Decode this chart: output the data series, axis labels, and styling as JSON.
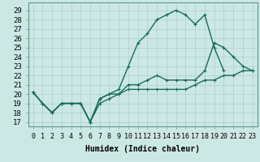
{
  "xlabel": "Humidex (Indice chaleur)",
  "bg_color": "#cce8e5",
  "line_color": "#1a6b5a",
  "grid_color": "#aacfcc",
  "xlim": [
    -0.5,
    23.5
  ],
  "ylim": [
    16.5,
    29.8
  ],
  "xticks": [
    0,
    1,
    2,
    3,
    4,
    5,
    6,
    7,
    8,
    9,
    10,
    11,
    12,
    13,
    14,
    15,
    16,
    17,
    18,
    19,
    20,
    21,
    22,
    23
  ],
  "yticks": [
    17,
    18,
    19,
    20,
    21,
    22,
    23,
    24,
    25,
    26,
    27,
    28,
    29
  ],
  "line1_x": [
    0,
    1,
    2,
    3,
    4,
    5,
    6,
    7,
    8,
    9,
    10,
    11,
    12,
    13,
    14,
    15,
    16,
    17,
    18,
    19,
    20,
    21,
    22,
    23
  ],
  "line1_y": [
    20.2,
    19.0,
    18.0,
    19.0,
    19.0,
    19.0,
    17.0,
    19.0,
    19.5,
    20.0,
    20.5,
    20.5,
    20.5,
    20.5,
    20.5,
    20.5,
    20.5,
    21.0,
    21.5,
    21.5,
    22.0,
    22.0,
    22.5,
    22.5
  ],
  "line2_x": [
    0,
    1,
    2,
    3,
    4,
    5,
    6,
    7,
    8,
    9,
    10,
    11,
    12,
    13,
    14,
    15,
    16,
    17,
    18,
    19,
    20
  ],
  "line2_y": [
    20.2,
    19.0,
    18.0,
    19.0,
    19.0,
    19.0,
    17.0,
    19.5,
    20.0,
    20.5,
    23.0,
    25.5,
    26.5,
    28.0,
    28.5,
    29.0,
    28.5,
    27.5,
    28.5,
    25.0,
    22.5
  ],
  "line3_x": [
    0,
    1,
    2,
    3,
    4,
    5,
    6,
    7,
    8,
    9,
    10,
    11,
    12,
    13,
    14,
    15,
    16,
    17,
    18,
    19,
    20,
    21,
    22,
    23
  ],
  "line3_y": [
    20.2,
    19.0,
    18.0,
    19.0,
    19.0,
    19.0,
    17.0,
    19.5,
    20.0,
    20.0,
    21.0,
    21.0,
    21.5,
    22.0,
    21.5,
    21.5,
    21.5,
    21.5,
    22.5,
    25.5,
    25.0,
    24.0,
    23.0,
    22.5
  ],
  "marker_size": 3.5,
  "line_width": 1.0,
  "xlabel_fontsize": 7.0,
  "tick_fontsize": 6.0
}
